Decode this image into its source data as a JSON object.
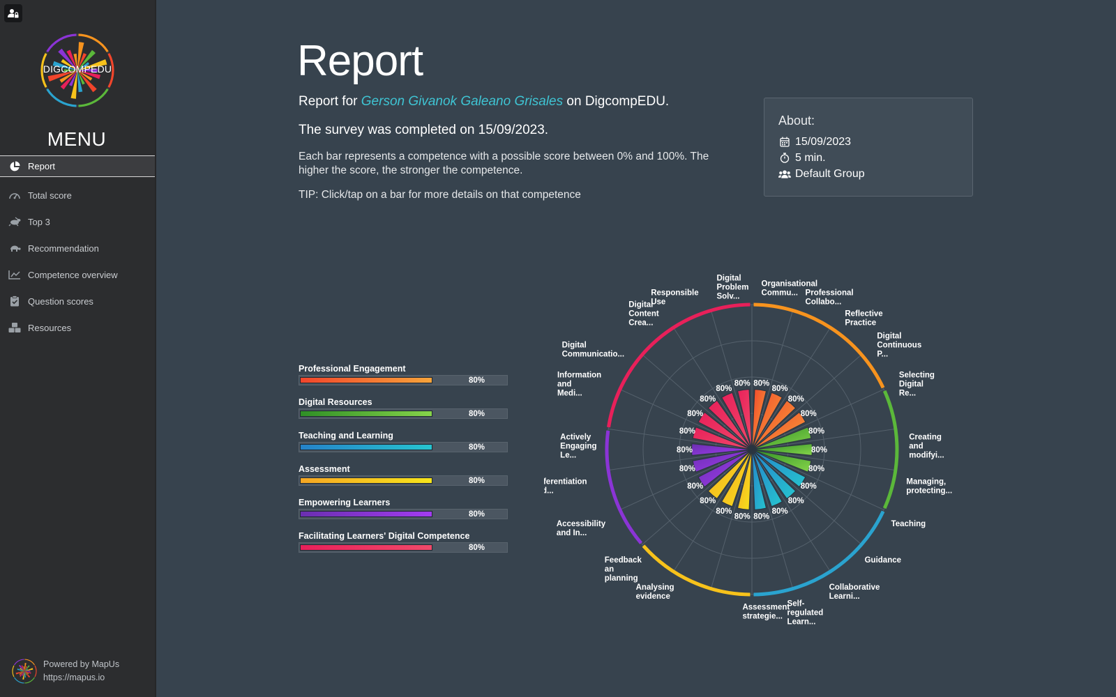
{
  "sidebar": {
    "logo_text": "DIGCOMPEDU",
    "menu_title": "MENU",
    "items": [
      {
        "label": "Report",
        "icon": "pie-chart-icon",
        "active": true
      },
      {
        "label": "Total score",
        "icon": "gauge-icon",
        "active": false
      },
      {
        "label": "Top 3",
        "icon": "hare-icon",
        "active": false
      },
      {
        "label": "Recommendation",
        "icon": "turtle-icon",
        "active": false
      },
      {
        "label": "Competence overview",
        "icon": "line-chart-icon",
        "active": false
      },
      {
        "label": "Question scores",
        "icon": "clipboard-check-icon",
        "active": false
      },
      {
        "label": "Resources",
        "icon": "boxes-icon",
        "active": false
      }
    ],
    "powered_by": "Powered by MapUs",
    "powered_url": "https://mapus.io"
  },
  "main": {
    "title": "Report",
    "report_for_prefix": "Report for ",
    "user_name": "Gerson Givanok Galeano Grisales",
    "report_for_suffix": " on DigcompEDU.",
    "completed_text": "The survey was completed on 15/09/2023.",
    "explanation": "Each bar represents a competence with a possible score between 0% and 100%. The higher the score, the stronger the competence.",
    "tip": "TIP: Click/tap on a bar for more details on that competence"
  },
  "about": {
    "title": "About:",
    "date": "15/09/2023",
    "duration": "5 min.",
    "group": "Default Group"
  },
  "colors": {
    "accent": "#3fc4d3",
    "background": "#37434e",
    "sidebar": "#2c2d2f"
  },
  "chart_data": [
    {
      "type": "bar",
      "orientation": "horizontal",
      "categories": [
        "Professional Engagement",
        "Digital Resources",
        "Teaching and Learning",
        "Assessment",
        "Empowering Learners",
        "Facilitating Learners' Digital Competence"
      ],
      "values": [
        80,
        80,
        80,
        80,
        80,
        80
      ],
      "value_labels": [
        "80%",
        "80%",
        "80%",
        "80%",
        "80%",
        "80%"
      ],
      "colors": [
        [
          "#f2452b",
          "#f7a43a"
        ],
        [
          "#2f8f26",
          "#86d44a"
        ],
        [
          "#2582c9",
          "#26c4cf"
        ],
        [
          "#f5a623",
          "#f7e51b"
        ],
        [
          "#6a2fb0",
          "#a23cf0"
        ],
        [
          "#e8205a",
          "#f04a6a"
        ]
      ],
      "ylim": [
        0,
        100
      ]
    },
    {
      "type": "polar-bar",
      "categories": [
        "Organisational Commu...",
        "Professional Collabo...",
        "Reflective Practice",
        "Digital Continuous P...",
        "Selecting Digital Re...",
        "Creating and modifyi...",
        "Managing, protecting...",
        "Teaching",
        "Guidance",
        "Collaborative Learni...",
        "Self-regulated Learn...",
        "Assessment strategie...",
        "Analysing evidence",
        "Feedback an planning",
        "Accessibility and In...",
        "Differentiation and...",
        "Actively Engaging Le...",
        "Information and Medi...",
        "Digital Communicatio...",
        "Digital Content Crea...",
        "Responsible Use",
        "Digital Problem Solv..."
      ],
      "label_lines": [
        [
          "Organisational",
          "Commu..."
        ],
        [
          "Professional",
          "Collabo..."
        ],
        [
          "Reflective",
          "Practice"
        ],
        [
          "Digital",
          "Continuous",
          "P..."
        ],
        [
          "Selecting",
          "Digital",
          "Re..."
        ],
        [
          "Creating",
          "and",
          "modifyi..."
        ],
        [
          "Managing,",
          "protecting..."
        ],
        [
          "Teaching"
        ],
        [
          "Guidance"
        ],
        [
          "Collaborative",
          "Learni..."
        ],
        [
          "Self-",
          "regulated",
          "Learn..."
        ],
        [
          "Assessment",
          "strategie..."
        ],
        [
          "Analysing",
          "evidence"
        ],
        [
          "Feedback",
          "an",
          "planning"
        ],
        [
          "Accessibility",
          "and In..."
        ],
        [
          "Differentiation",
          "and..."
        ],
        [
          "Actively",
          "Engaging",
          "Le..."
        ],
        [
          "Information",
          "and",
          "Medi..."
        ],
        [
          "Digital",
          "Communicatio..."
        ],
        [
          "Digital",
          "Content",
          "Crea..."
        ],
        [
          "Responsible",
          "Use"
        ],
        [
          "Digital",
          "Problem",
          "Solv..."
        ]
      ],
      "values": [
        80,
        80,
        80,
        80,
        80,
        80,
        80,
        80,
        80,
        80,
        80,
        80,
        80,
        80,
        80,
        80,
        80,
        80,
        80,
        80,
        80,
        80
      ],
      "value_labels": [
        "80%",
        "80%",
        "80%",
        "80%",
        "80%",
        "80%",
        "80%",
        "80%",
        "80%",
        "80%",
        "80%",
        "80%",
        "80%",
        "80%",
        "80%",
        "80%",
        "80%",
        "80%",
        "80%",
        "80%",
        "80%",
        "80%"
      ],
      "groups": [
        {
          "name": "Professional Engagement",
          "count": 4,
          "color": "#f7931e",
          "bar": [
            "#f2452b",
            "#f7a43a"
          ]
        },
        {
          "name": "Digital Resources",
          "count": 3,
          "color": "#5bb83a",
          "bar": [
            "#2f8f26",
            "#86d44a"
          ]
        },
        {
          "name": "Teaching and Learning",
          "count": 4,
          "color": "#2aa3cf",
          "bar": [
            "#2582c9",
            "#26c4cf"
          ]
        },
        {
          "name": "Assessment",
          "count": 3,
          "color": "#f7c21b",
          "bar": [
            "#f5a623",
            "#f7e51b"
          ]
        },
        {
          "name": "Empowering Learners",
          "count": 3,
          "color": "#8b34d6",
          "bar": [
            "#6a2fb0",
            "#a23cf0"
          ]
        },
        {
          "name": "Facilitating Learners' Digital Competence",
          "count": 5,
          "color": "#e8205a",
          "bar": [
            "#e8205a",
            "#f04a6a"
          ]
        }
      ],
      "rlim": [
        0,
        100
      ],
      "grid": true
    }
  ]
}
